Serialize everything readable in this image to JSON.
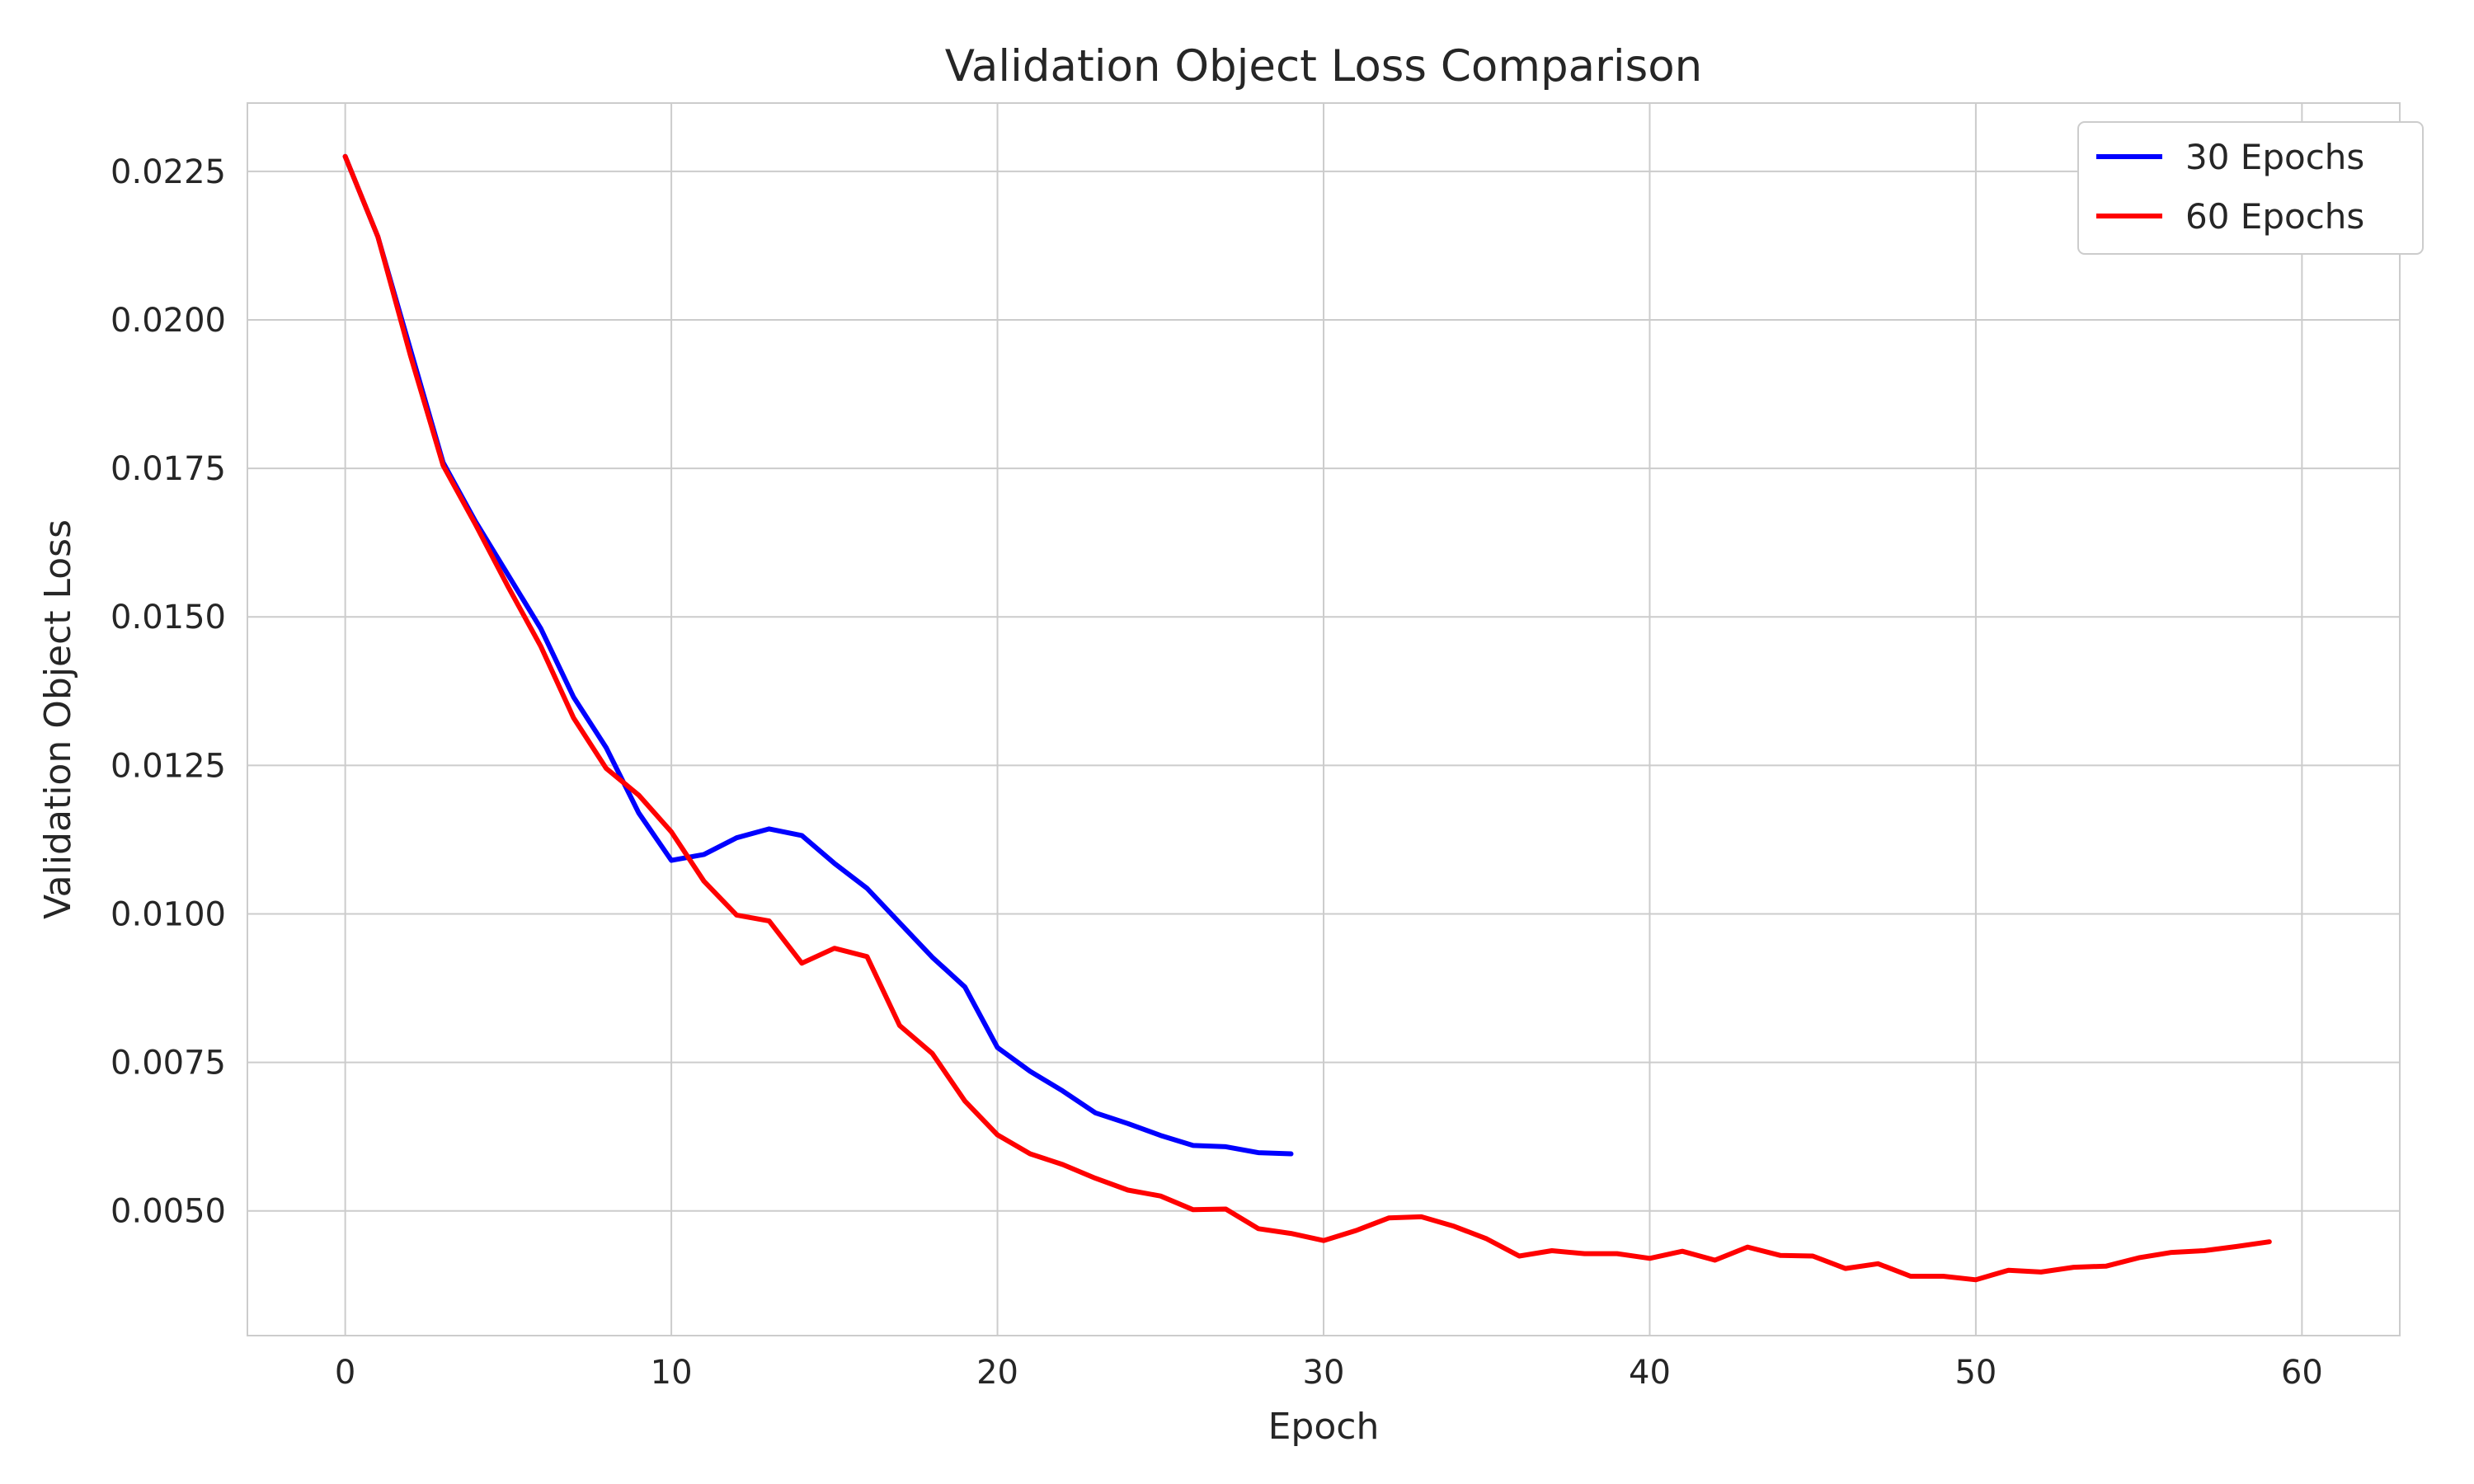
{
  "chart_data": {
    "type": "line",
    "title": "Validation Object Loss Comparison",
    "xlabel": "Epoch",
    "ylabel": "Validation Object Loss",
    "xlim": [
      -3,
      63
    ],
    "ylim": [
      0.0029,
      0.02365
    ],
    "xticks": [
      0,
      10,
      20,
      30,
      40,
      50,
      60
    ],
    "xtick_labels": [
      "0",
      "10",
      "20",
      "30",
      "40",
      "50",
      "60"
    ],
    "yticks": [
      0.005,
      0.0075,
      0.01,
      0.0125,
      0.015,
      0.0175,
      0.02,
      0.0225
    ],
    "ytick_labels": [
      "0.0050",
      "0.0075",
      "0.0100",
      "0.0125",
      "0.0150",
      "0.0175",
      "0.0200",
      "0.0225"
    ],
    "grid": true,
    "legend_position": "top-right",
    "series": [
      {
        "name": "30 Epochs",
        "color": "#0000ff",
        "x": [
          0,
          1,
          2,
          3,
          4,
          5,
          6,
          7,
          8,
          9,
          10,
          11,
          12,
          13,
          14,
          15,
          16,
          17,
          18,
          19,
          20,
          21,
          22,
          23,
          24,
          25,
          26,
          27,
          28,
          29
        ],
        "y": [
          0.02275,
          0.0214,
          0.0195,
          0.0176,
          0.0166,
          0.0157,
          0.0148,
          0.01365,
          0.0128,
          0.0117,
          0.0109,
          0.011,
          0.01128,
          0.01143,
          0.01132,
          0.01085,
          0.01043,
          0.00985,
          0.00927,
          0.00877,
          0.00775,
          0.00735,
          0.00702,
          0.00665,
          0.00647,
          0.00627,
          0.0061,
          0.00608,
          0.00598,
          0.00596
        ]
      },
      {
        "name": "60 Epochs",
        "color": "#ff0000",
        "x": [
          0,
          1,
          2,
          3,
          4,
          5,
          6,
          7,
          8,
          9,
          10,
          11,
          12,
          13,
          14,
          15,
          16,
          17,
          18,
          19,
          20,
          21,
          22,
          23,
          24,
          25,
          26,
          27,
          28,
          29,
          30,
          31,
          32,
          33,
          34,
          35,
          36,
          37,
          38,
          39,
          40,
          41,
          42,
          43,
          44,
          45,
          46,
          47,
          48,
          49,
          50,
          51,
          52,
          53,
          54,
          55,
          56,
          57,
          58,
          59
        ],
        "y": [
          0.02275,
          0.0214,
          0.0194,
          0.01755,
          0.01655,
          0.0155,
          0.0145,
          0.0133,
          0.01245,
          0.012,
          0.01138,
          0.01055,
          0.00998,
          0.00988,
          0.00917,
          0.00942,
          0.00928,
          0.00812,
          0.00765,
          0.00685,
          0.00628,
          0.00596,
          0.00578,
          0.00555,
          0.00535,
          0.00525,
          0.00502,
          0.00503,
          0.0047,
          0.00462,
          0.0045,
          0.00467,
          0.00488,
          0.0049,
          0.00474,
          0.00453,
          0.00424,
          0.00433,
          0.00428,
          0.00428,
          0.0042,
          0.00432,
          0.00417,
          0.00439,
          0.00425,
          0.00424,
          0.00403,
          0.00411,
          0.0039,
          0.0039,
          0.00384,
          0.004,
          0.00397,
          0.00405,
          0.00407,
          0.00421,
          0.0043,
          0.00433,
          0.0044,
          0.00448
        ]
      }
    ]
  }
}
